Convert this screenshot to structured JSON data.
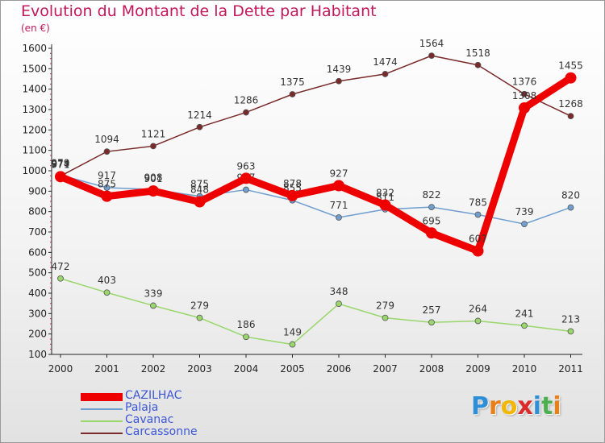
{
  "chart_data": {
    "type": "line",
    "title": "Evolution du Montant de la Dette par Habitant",
    "subtitle": "(en €)",
    "x": [
      "2000",
      "2001",
      "2002",
      "2003",
      "2004",
      "2005",
      "2006",
      "2007",
      "2008",
      "2009",
      "2010",
      "2011"
    ],
    "ylim": [
      100,
      1600
    ],
    "yticks": [
      100,
      200,
      300,
      400,
      500,
      600,
      700,
      800,
      900,
      1000,
      1100,
      1200,
      1300,
      1400,
      1500,
      1600
    ],
    "grid": false,
    "legend_position": "bottom-left",
    "series": [
      {
        "name": "Carcassonne",
        "color": "#7a2a2a",
        "values": [
          974,
          1094,
          1121,
          1214,
          1286,
          1375,
          1439,
          1474,
          1564,
          1518,
          1376,
          1268
        ]
      },
      {
        "name": "Cavanac",
        "color": "#99d66b",
        "values": [
          472,
          403,
          339,
          279,
          186,
          149,
          348,
          279,
          257,
          264,
          241,
          213
        ]
      },
      {
        "name": "Palaja",
        "color": "#6f9ecf",
        "values": [
          979,
          917,
          908,
          875,
          907,
          855,
          771,
          811,
          822,
          785,
          739,
          820
        ]
      },
      {
        "name": "CAZILHAC",
        "color": "#ee0000",
        "values": [
          971,
          875,
          901,
          848,
          963,
          878,
          927,
          832,
          695,
          607,
          1308,
          1455
        ]
      }
    ]
  },
  "legend": [
    "CAZILHAC",
    "Palaja",
    "Cavanac",
    "Carcassonne"
  ],
  "logo": {
    "letters": [
      "P",
      "r",
      "o",
      "x",
      "i",
      "t",
      "i"
    ],
    "colors": [
      "#2f8fd6",
      "#e8801a",
      "#f2b705",
      "#d92b2b",
      "#2f8fd6",
      "#4caf50",
      "#e8801a"
    ]
  }
}
